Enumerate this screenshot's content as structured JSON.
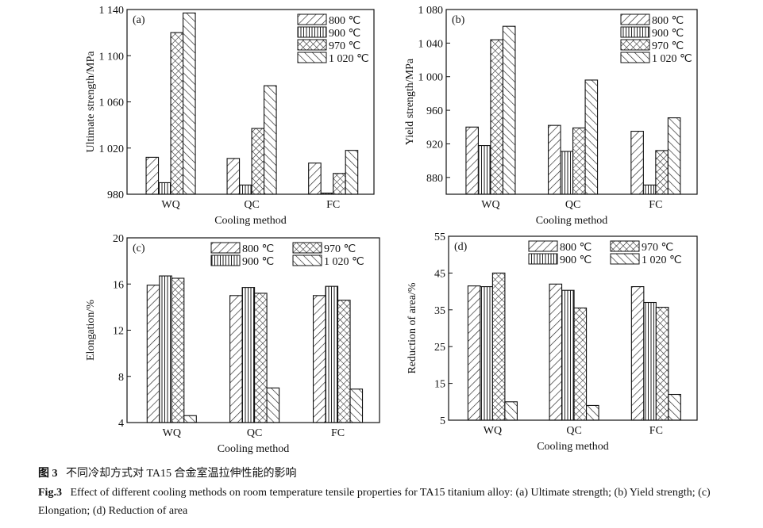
{
  "caption": {
    "cn_label": "图 3",
    "cn_text": "不同冷却方式对 TA15 合金室温拉伸性能的影响",
    "en_label": "Fig.3",
    "en_text": "Effect of different cooling methods on room temperature tensile properties for TA15 titanium alloy: (a) Ultimate strength; (b) Yield strength; (c) Elongation; (d) Reduction of area"
  },
  "chart_data": [
    {
      "type": "bar",
      "panel": "(a)",
      "xlabel": "Cooling method",
      "ylabel": "Ultimate strength/MPa",
      "categories": [
        "WQ",
        "QC",
        "FC"
      ],
      "ylim": [
        980,
        1140
      ],
      "yticks": [
        980,
        1020,
        1060,
        1100,
        1140
      ],
      "ytick_labels": [
        "980",
        "1 020",
        "1 060",
        "1 100",
        "1 140"
      ],
      "legend_layout": "column",
      "legend_placement": "top-right",
      "series": [
        {
          "name": "800 ℃",
          "pattern": "diag-forward",
          "values": [
            1012,
            1011,
            1007
          ]
        },
        {
          "name": "900 ℃",
          "pattern": "vertical",
          "values": [
            990,
            988,
            981
          ]
        },
        {
          "name": "970 ℃",
          "pattern": "crosshatch",
          "values": [
            1120,
            1037,
            998
          ]
        },
        {
          "name": "1 020 ℃",
          "pattern": "diag-backward",
          "values": [
            1137,
            1074,
            1018
          ]
        }
      ]
    },
    {
      "type": "bar",
      "panel": "(b)",
      "xlabel": "Cooling method",
      "ylabel": "Yield strength/MPa",
      "categories": [
        "WQ",
        "QC",
        "FC"
      ],
      "ylim": [
        860,
        1080
      ],
      "yticks": [
        880,
        920,
        960,
        1000,
        1040,
        1080
      ],
      "ytick_labels": [
        "880",
        "920",
        "960",
        "1 000",
        "1 040",
        "1 080"
      ],
      "legend_layout": "column",
      "legend_placement": "top-right",
      "series": [
        {
          "name": "800 ℃",
          "pattern": "diag-forward",
          "values": [
            940,
            942,
            935
          ]
        },
        {
          "name": "900 ℃",
          "pattern": "vertical",
          "values": [
            918,
            911,
            871
          ]
        },
        {
          "name": "970 ℃",
          "pattern": "crosshatch",
          "values": [
            1044,
            939,
            912
          ]
        },
        {
          "name": "1 020 ℃",
          "pattern": "diag-backward",
          "values": [
            1060,
            996,
            951
          ]
        }
      ]
    },
    {
      "type": "bar",
      "panel": "(c)",
      "xlabel": "Cooling method",
      "ylabel": "Elongation/%",
      "categories": [
        "WQ",
        "QC",
        "FC"
      ],
      "ylim": [
        4,
        20
      ],
      "yticks": [
        4,
        8,
        12,
        16,
        20
      ],
      "ytick_labels": [
        "4",
        "8",
        "12",
        "16",
        "20"
      ],
      "legend_layout": "grid",
      "legend_placement": "top-right",
      "series": [
        {
          "name": "800 ℃",
          "pattern": "diag-forward",
          "values": [
            15.9,
            15.0,
            15.0
          ]
        },
        {
          "name": "900 ℃",
          "pattern": "vertical",
          "values": [
            16.7,
            15.7,
            15.8
          ]
        },
        {
          "name": "970 ℃",
          "pattern": "crosshatch",
          "values": [
            16.5,
            15.2,
            14.6
          ]
        },
        {
          "name": "1 020 ℃",
          "pattern": "diag-backward",
          "values": [
            4.6,
            7.0,
            6.9
          ]
        }
      ]
    },
    {
      "type": "bar",
      "panel": "(d)",
      "xlabel": "Cooling method",
      "ylabel": "Reduction of area/%",
      "categories": [
        "WQ",
        "QC",
        "FC"
      ],
      "ylim": [
        5,
        55
      ],
      "yticks": [
        5,
        15,
        25,
        35,
        45,
        55
      ],
      "ytick_labels": [
        "5",
        "15",
        "25",
        "35",
        "45",
        "55"
      ],
      "legend_layout": "grid",
      "legend_placement": "top-right",
      "series": [
        {
          "name": "800 ℃",
          "pattern": "diag-forward",
          "values": [
            41.5,
            42.0,
            41.3
          ]
        },
        {
          "name": "900 ℃",
          "pattern": "vertical",
          "values": [
            41.3,
            40.3,
            37.0
          ]
        },
        {
          "name": "970 ℃",
          "pattern": "crosshatch",
          "values": [
            45.0,
            35.5,
            35.7
          ]
        },
        {
          "name": "1 020 ℃",
          "pattern": "diag-backward",
          "values": [
            10.0,
            9.0,
            12.0
          ]
        }
      ]
    }
  ]
}
